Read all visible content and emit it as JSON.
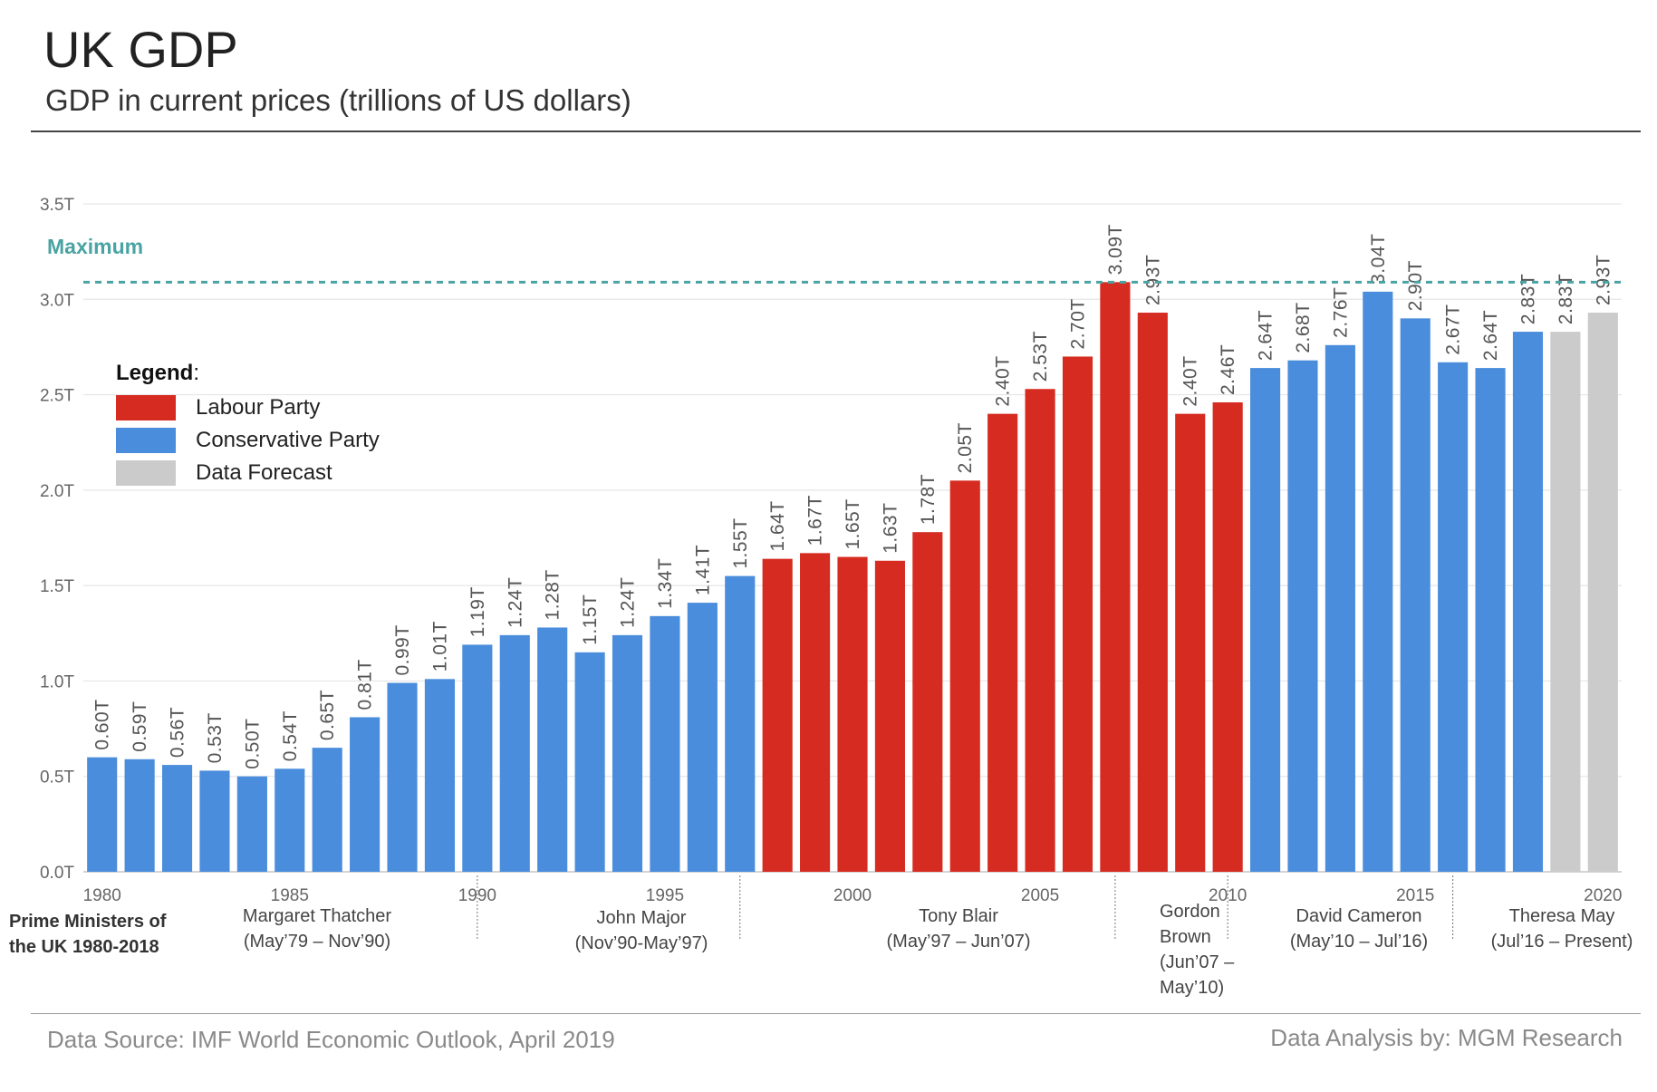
{
  "header": {
    "title": "UK GDP",
    "subtitle": "GDP in current prices (trillions of US dollars)"
  },
  "footer": {
    "source": "Data Source: IMF World Economic Outlook, April 2019",
    "credit": "Data Analysis by: MGM Research"
  },
  "legend": {
    "heading": "Legend",
    "items": [
      {
        "label": "Labour Party",
        "color": "#d62b21"
      },
      {
        "label": "Conservative Party",
        "color": "#4a8ddc"
      },
      {
        "label": "Data Forecast",
        "color": "#cbcbcb"
      }
    ]
  },
  "prime_ministers": {
    "heading_line1": "Prime Ministers of",
    "heading_line2": "the UK 1980-2018",
    "items": [
      {
        "line1": "Margaret Thatcher",
        "line2": "(May’79 – Nov’90)"
      },
      {
        "line1": "John Major",
        "line2": "(Nov’90-May’97)"
      },
      {
        "line1": "Tony Blair",
        "line2": "(May’97 – Jun’07)"
      },
      {
        "line1": "Gordon",
        "line2": "Brown",
        "line3": "(Jun’07 –",
        "line4": "May’10)"
      },
      {
        "line1": "David Cameron",
        "line2": "(May’10 – Jul’16)"
      },
      {
        "line1": "Theresa May",
        "line2": "(Jul’16 – Present)"
      }
    ]
  },
  "chart_data": {
    "type": "bar",
    "title": "UK GDP",
    "subtitle": "GDP in current prices (trillions of US dollars)",
    "xlabel": "",
    "ylabel": "",
    "ylim": [
      0,
      3.5
    ],
    "y_ticks": [
      0,
      0.5,
      1.0,
      1.5,
      2.0,
      2.5,
      3.0,
      3.5
    ],
    "y_tick_labels": [
      "0.0T",
      "0.5T",
      "1.0T",
      "1.5T",
      "2.0T",
      "2.5T",
      "3.0T",
      "3.5T"
    ],
    "x_ticks": [
      1980,
      1985,
      1990,
      1995,
      2000,
      2005,
      2010,
      2015,
      2020
    ],
    "x_tick_labels": [
      "1980",
      "1985",
      "1990",
      "1995",
      "2000",
      "2005",
      "2010",
      "2015",
      "2020"
    ],
    "max_line": {
      "label": "Maximum",
      "value": 3.09,
      "color": "#4aa3a3"
    },
    "party_colors": {
      "Conservative": "#4a8ddc",
      "Labour": "#d62b21",
      "Forecast": "#cbcbcb"
    },
    "categories": [
      1980,
      1981,
      1982,
      1983,
      1984,
      1985,
      1986,
      1987,
      1988,
      1989,
      1990,
      1991,
      1992,
      1993,
      1994,
      1995,
      1996,
      1997,
      1998,
      1999,
      2000,
      2001,
      2002,
      2003,
      2004,
      2005,
      2006,
      2007,
      2008,
      2009,
      2010,
      2011,
      2012,
      2013,
      2014,
      2015,
      2016,
      2017,
      2018,
      2019,
      2020
    ],
    "values": [
      0.6,
      0.59,
      0.56,
      0.53,
      0.5,
      0.54,
      0.65,
      0.81,
      0.99,
      1.01,
      1.19,
      1.24,
      1.28,
      1.15,
      1.24,
      1.34,
      1.41,
      1.55,
      1.64,
      1.67,
      1.65,
      1.63,
      1.78,
      2.05,
      2.4,
      2.53,
      2.7,
      3.09,
      2.93,
      2.4,
      2.46,
      2.64,
      2.68,
      2.76,
      3.04,
      2.9,
      2.67,
      2.64,
      2.83,
      2.83,
      2.93
    ],
    "labels": [
      "0.60T",
      "0.59T",
      "0.56T",
      "0.53T",
      "0.50T",
      "0.54T",
      "0.65T",
      "0.81T",
      "0.99T",
      "1.01T",
      "1.19T",
      "1.24T",
      "1.28T",
      "1.15T",
      "1.24T",
      "1.34T",
      "1.41T",
      "1.55T",
      "1.64T",
      "1.67T",
      "1.65T",
      "1.63T",
      "1.78T",
      "2.05T",
      "2.40T",
      "2.53T",
      "2.70T",
      "3.09T",
      "2.93T",
      "2.40T",
      "2.46T",
      "2.64T",
      "2.68T",
      "2.76T",
      "3.04T",
      "2.90T",
      "2.67T",
      "2.64T",
      "2.83T",
      "2.83T",
      "2.93T"
    ],
    "party": [
      "Conservative",
      "Conservative",
      "Conservative",
      "Conservative",
      "Conservative",
      "Conservative",
      "Conservative",
      "Conservative",
      "Conservative",
      "Conservative",
      "Conservative",
      "Conservative",
      "Conservative",
      "Conservative",
      "Conservative",
      "Conservative",
      "Conservative",
      "Conservative",
      "Labour",
      "Labour",
      "Labour",
      "Labour",
      "Labour",
      "Labour",
      "Labour",
      "Labour",
      "Labour",
      "Labour",
      "Labour",
      "Labour",
      "Labour",
      "Conservative",
      "Conservative",
      "Conservative",
      "Conservative",
      "Conservative",
      "Conservative",
      "Conservative",
      "Conservative",
      "Forecast",
      "Forecast"
    ],
    "pm_boundaries_year": [
      1990.5,
      1997.5,
      2007.5,
      2010.5,
      2016.5
    ]
  }
}
